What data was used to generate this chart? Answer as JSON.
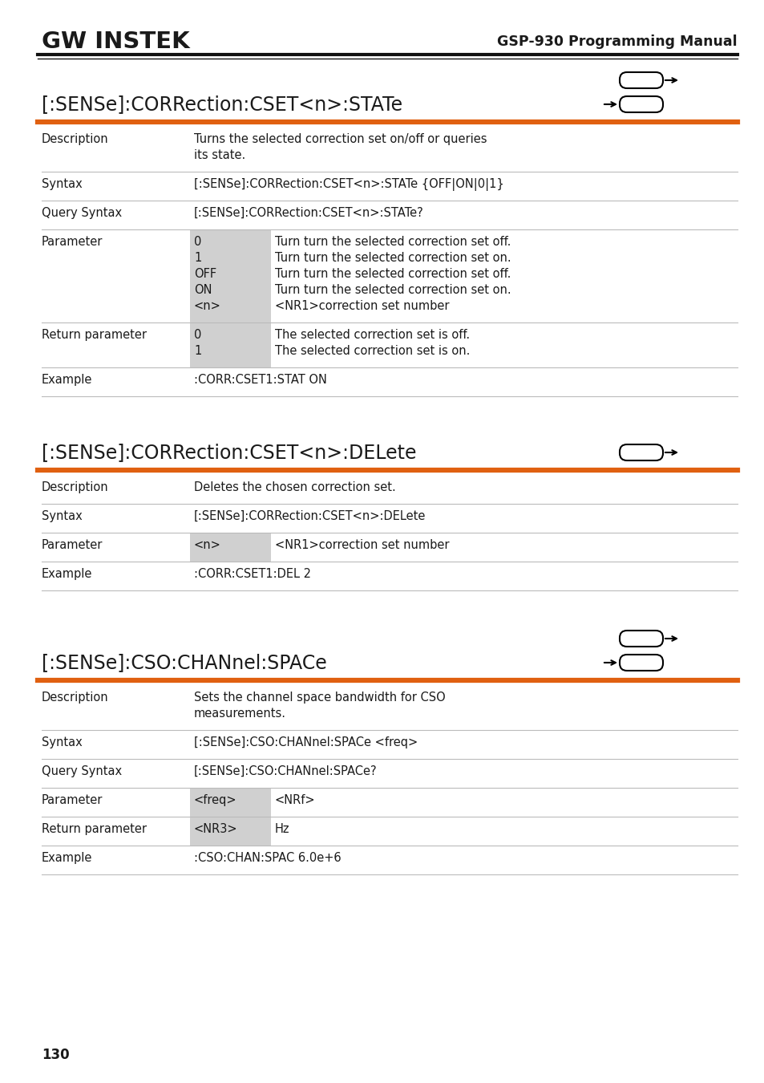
{
  "bg_color": "#ffffff",
  "header_logo": "GW INSTEK",
  "header_title": "GSP-930 Programming Manual",
  "page_number": "130",
  "orange_color": "#E06010",
  "gray_color": "#D0D0D0",
  "line_color": "#BBBBBB",
  "text_color": "#1a1a1a",
  "sections": [
    {
      "heading": "[:SENSe]:CORRection:CSET<n>:STATe",
      "icon_type": "query_set",
      "rows": [
        {
          "label": "Description",
          "col2": "",
          "col3": "Turns the selected correction set on/off or queries\nits state.",
          "has_gray": false
        },
        {
          "label": "Syntax",
          "col2": "",
          "col3": "[:SENSe]:CORRection:CSET<n>:STATe {OFF|ON|0|1}",
          "has_gray": false
        },
        {
          "label": "Query Syntax",
          "col2": "",
          "col3": "[:SENSe]:CORRection:CSET<n>:STATe?",
          "has_gray": false
        },
        {
          "label": "Parameter",
          "col2": "0\n1\nOFF\nON\n<n>",
          "col3": "Turn turn the selected correction set off.\nTurn turn the selected correction set on.\nTurn turn the selected correction set off.\nTurn turn the selected correction set on.\n<NR1>correction set number",
          "has_gray": true
        },
        {
          "label": "Return parameter",
          "col2": "0\n1",
          "col3": "The selected correction set is off.\nThe selected correction set is on.",
          "has_gray": true
        },
        {
          "label": "Example",
          "col2": "",
          "col3": ":CORR:CSET1:STAT ON",
          "has_gray": false
        }
      ]
    },
    {
      "heading": "[:SENSe]:CORRection:CSET<n>:DELete",
      "icon_type": "set_only",
      "rows": [
        {
          "label": "Description",
          "col2": "",
          "col3": "Deletes the chosen correction set.",
          "has_gray": false
        },
        {
          "label": "Syntax",
          "col2": "",
          "col3": "[:SENSe]:CORRection:CSET<n>:DELete",
          "has_gray": false
        },
        {
          "label": "Parameter",
          "col2": "<n>",
          "col3": "<NR1>correction set number",
          "has_gray": true
        },
        {
          "label": "Example",
          "col2": "",
          "col3": ":CORR:CSET1:DEL 2",
          "has_gray": false
        }
      ]
    },
    {
      "heading": "[:SENSe]:CSO:CHANnel:SPACe",
      "icon_type": "query_set",
      "rows": [
        {
          "label": "Description",
          "col2": "",
          "col3": "Sets the channel space bandwidth for CSO\nmeasurements.",
          "has_gray": false
        },
        {
          "label": "Syntax",
          "col2": "",
          "col3": "[:SENSe]:CSO:CHANnel:SPACe <freq>",
          "has_gray": false
        },
        {
          "label": "Query Syntax",
          "col2": "",
          "col3": "[:SENSe]:CSO:CHANnel:SPACe?",
          "has_gray": false
        },
        {
          "label": "Parameter",
          "col2": "<freq>",
          "col3": "<NRf>",
          "has_gray": true
        },
        {
          "label": "Return parameter",
          "col2": "<NR3>",
          "col3": "Hz",
          "has_gray": true
        },
        {
          "label": "Example",
          "col2": "",
          "col3": ":CSO:CHAN:SPAC 6.0e+6",
          "has_gray": false
        }
      ]
    }
  ]
}
